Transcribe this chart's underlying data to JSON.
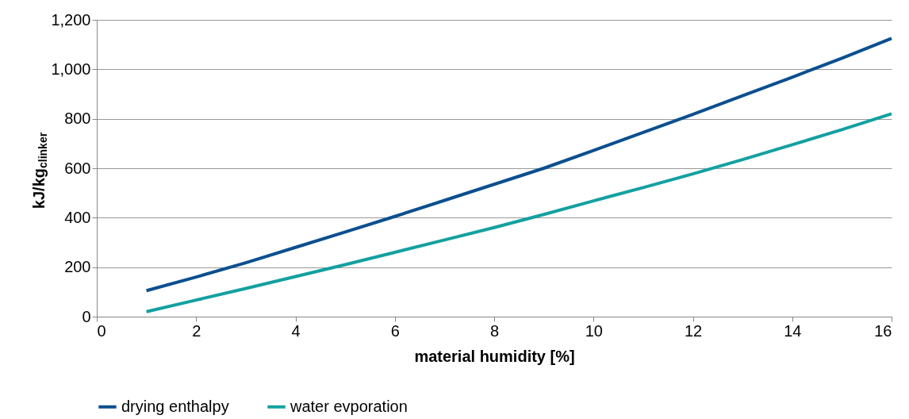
{
  "chart_data": {
    "type": "line",
    "xlabel": "material humidity [%]",
    "ylabel": "kJ/kg$_{clinker}$",
    "x": [
      1,
      2,
      3,
      4,
      5,
      6,
      7,
      8,
      9,
      10,
      11,
      12,
      13,
      14,
      15,
      16
    ],
    "series": [
      {
        "name": "drying enthalpy",
        "color": "#0b4f8f",
        "values": [
          105,
          160,
          218,
          280,
          342,
          405,
          470,
          535,
          600,
          672,
          745,
          818,
          893,
          968,
          1045,
          1125
        ]
      },
      {
        "name": "water evporation",
        "color": "#14a0a0",
        "values": [
          20,
          67,
          114,
          162,
          210,
          260,
          310,
          360,
          413,
          468,
          522,
          577,
          635,
          695,
          756,
          820
        ]
      }
    ],
    "xlim": [
      0,
      16
    ],
    "xticks": [
      0,
      2,
      4,
      6,
      8,
      10,
      12,
      14,
      16
    ],
    "ylim": [
      0,
      1200
    ],
    "yticks": [
      0,
      200,
      400,
      600,
      800,
      {
        "value": 1000,
        "label": "1,000"
      },
      {
        "value": 1200,
        "label": "1,200"
      }
    ],
    "grid": "y",
    "legend": "bottom",
    "marker": "none",
    "line_style": "solid"
  }
}
